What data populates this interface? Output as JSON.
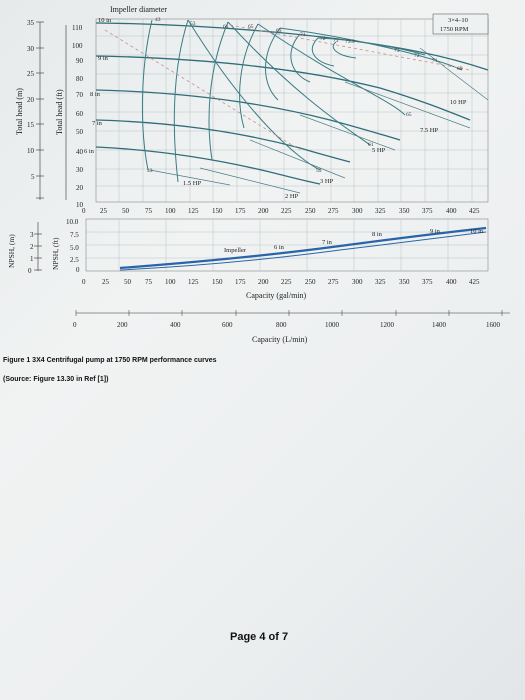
{
  "figure": {
    "impeller_diameter_title": "Impeller diameter",
    "pump_label_line1": "3×4–10",
    "pump_label_line2": "1750 RPM",
    "head_m_label": "Total head (m)",
    "head_ft_label": "Total head (ft)",
    "npsh_m_label": "NPSH, (m)",
    "npsh_ft_label": "NPSH, (ft)",
    "gal_axis_label": "Capacity (gal/min)",
    "lmin_axis_label": "Capacity (L/min)",
    "head_m_ticks": [
      "35",
      "30",
      "25",
      "20",
      "15",
      "10",
      "5"
    ],
    "head_ft_ticks": [
      "110",
      "100",
      "90",
      "80",
      "70",
      "60",
      "50",
      "40",
      "30",
      "20",
      "10"
    ],
    "npsh_m_ticks": [
      "3",
      "2",
      "1",
      "0"
    ],
    "npsh_ft_ticks": [
      "10.0",
      "7.5",
      "5.0",
      "2.5",
      "0"
    ],
    "gal_ticks": [
      "0",
      "25",
      "50",
      "75",
      "100",
      "125",
      "150",
      "175",
      "200",
      "225",
      "250",
      "275",
      "300",
      "325",
      "350",
      "375",
      "400",
      "425"
    ],
    "lmin_ticks": [
      "0",
      "200",
      "400",
      "600",
      "800",
      "1000",
      "1200",
      "1400",
      "1600"
    ],
    "impeller_labels": [
      "10 in",
      "9 in",
      "8 in",
      "7 in",
      "6 in"
    ],
    "npsh_impeller_labels": [
      "Impeller",
      "6 in",
      "7 in",
      "8 in",
      "9 in",
      "10 in"
    ],
    "hp_labels": [
      "10 HP",
      "7.5 HP",
      "5 HP",
      "3 HP",
      "2 HP",
      "1.5 HP"
    ],
    "efficiency_labels": [
      "43",
      "53",
      "61",
      "65",
      "69",
      "71",
      "72",
      "73",
      "73.9",
      "73",
      "72",
      "71",
      "69",
      "65",
      "61",
      "53",
      "43"
    ],
    "caption_line1": "Figure 1 3X4 Centrifugal pump at 1750 RPM performance curves",
    "caption_line2": "(Source: Figure 13.30 in Ref [1])",
    "page_number": "Page 4 of 7"
  }
}
